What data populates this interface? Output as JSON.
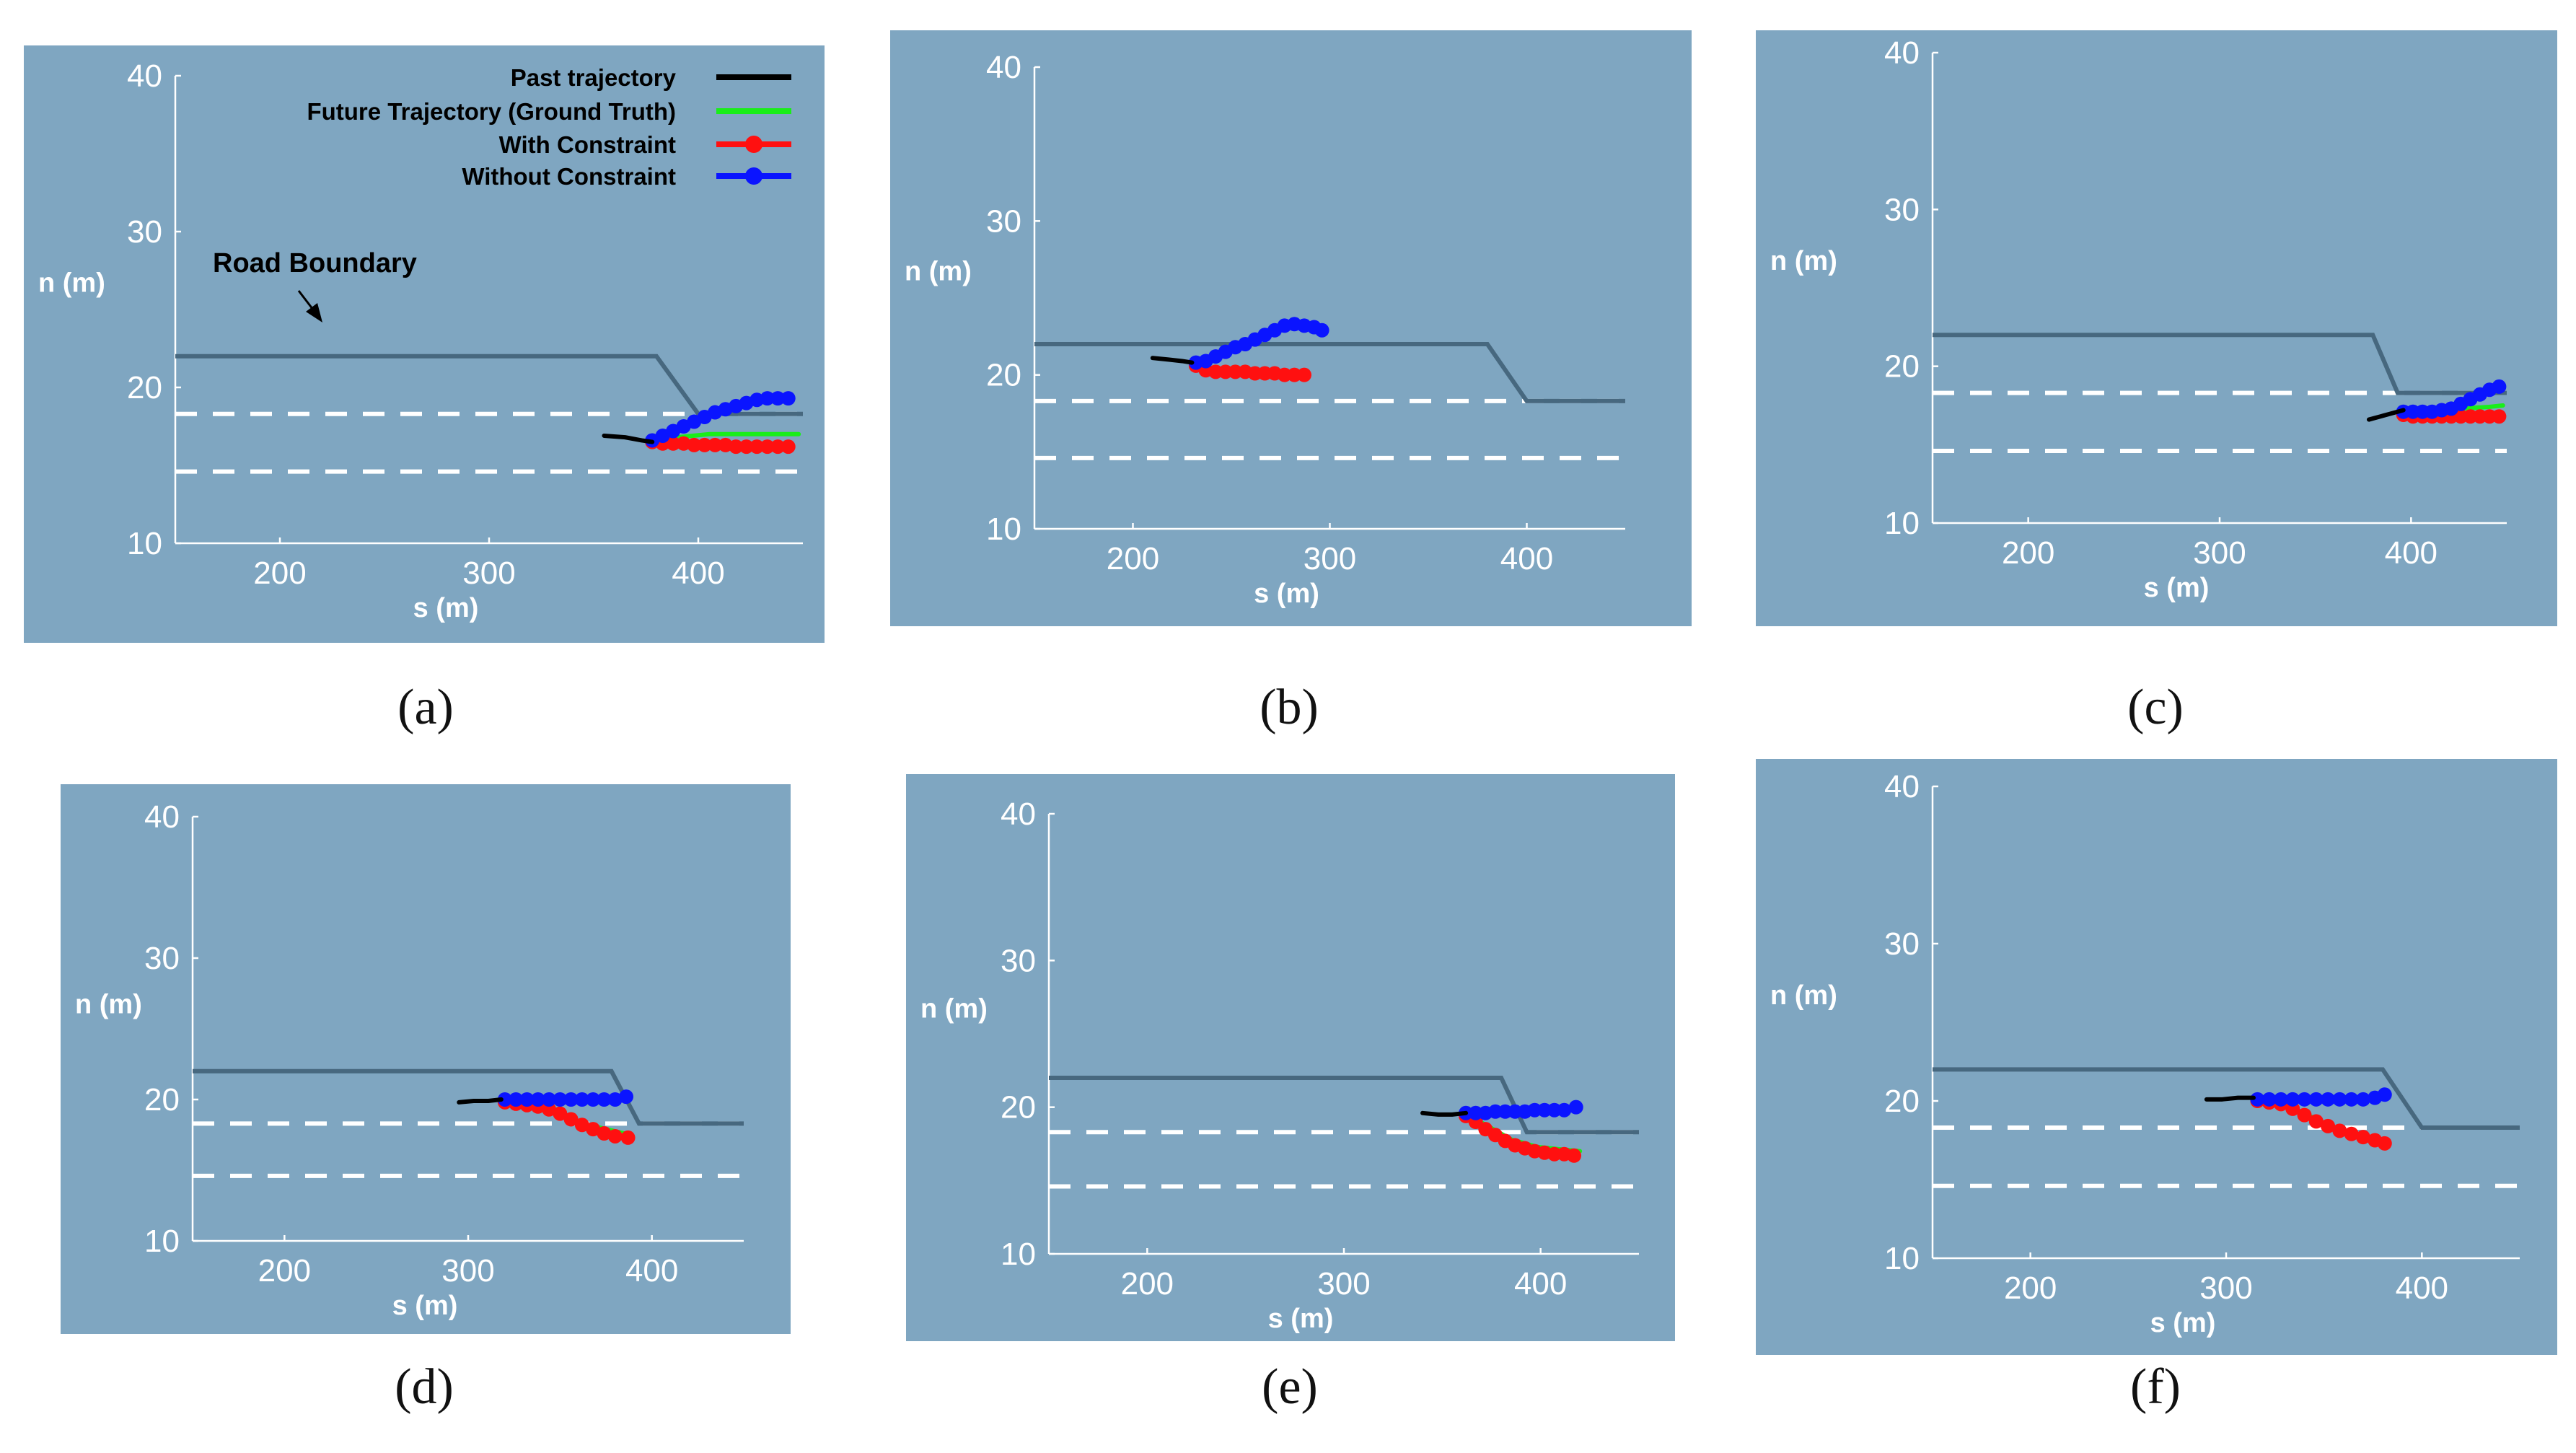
{
  "figure": {
    "captions": [
      "(a)",
      "(b)",
      "(c)",
      "(d)",
      "(e)",
      "(f)"
    ],
    "colors": {
      "background": "#7fa6c1",
      "boundary": "#47687f",
      "lane": "#ffffff",
      "past": "#000000",
      "future": "#19ee19",
      "with_constraint": "#ff1010",
      "without_constraint": "#0a14ff"
    }
  },
  "legend": {
    "items": [
      {
        "label": "Past trajectory",
        "key": "past"
      },
      {
        "label": "Future Trajectory (Ground Truth)",
        "key": "future"
      },
      {
        "label": "With Constraint",
        "key": "with"
      },
      {
        "label": "Without Constraint",
        "key": "without"
      }
    ]
  },
  "annotation": {
    "text": "Road Boundary"
  },
  "chart_data": [
    {
      "type": "line",
      "id": "a",
      "caption": "(a)",
      "xlabel": "s (m)",
      "ylabel": "n (m)",
      "xlim": [
        150,
        450
      ],
      "ylim": [
        10,
        40
      ],
      "xticks": [
        200,
        300,
        400
      ],
      "yticks": [
        10,
        20,
        30,
        40
      ],
      "road_boundary": {
        "x": [
          150,
          380,
          400,
          450
        ],
        "y": [
          22,
          22,
          18.3,
          18.3
        ]
      },
      "lane_lines": [
        18.3,
        14.6
      ],
      "series": [
        {
          "name": "Past trajectory",
          "key": "past",
          "x": [
            355,
            365,
            373,
            378
          ],
          "y": [
            16.9,
            16.8,
            16.6,
            16.5
          ]
        },
        {
          "name": "Future Trajectory (Ground Truth)",
          "key": "future",
          "x": [
            378,
            390,
            405,
            420,
            435,
            448
          ],
          "y": [
            16.5,
            16.8,
            17,
            17,
            17,
            17
          ]
        },
        {
          "name": "With Constraint",
          "key": "with",
          "x": [
            378,
            383,
            388,
            393,
            398,
            403,
            408,
            413,
            418,
            423,
            428,
            433,
            438,
            443
          ],
          "y": [
            16.5,
            16.4,
            16.4,
            16.4,
            16.3,
            16.3,
            16.3,
            16.3,
            16.2,
            16.2,
            16.2,
            16.2,
            16.2,
            16.2
          ]
        },
        {
          "name": "Without Constraint",
          "key": "without",
          "x": [
            378,
            383,
            388,
            393,
            398,
            403,
            408,
            413,
            418,
            423,
            428,
            433,
            438,
            443
          ],
          "y": [
            16.6,
            16.9,
            17.2,
            17.5,
            17.8,
            18.1,
            18.4,
            18.6,
            18.8,
            19,
            19.2,
            19.3,
            19.3,
            19.3
          ]
        }
      ]
    },
    {
      "type": "line",
      "id": "b",
      "caption": "(b)",
      "xlabel": "s (m)",
      "ylabel": "n (m)",
      "xlim": [
        150,
        450
      ],
      "ylim": [
        10,
        40
      ],
      "xticks": [
        200,
        300,
        400
      ],
      "yticks": [
        10,
        20,
        30,
        40
      ],
      "road_boundary": {
        "x": [
          150,
          380,
          400,
          450
        ],
        "y": [
          22,
          22,
          18.3,
          18.3
        ]
      },
      "lane_lines": [
        18.3,
        14.6
      ],
      "series": [
        {
          "name": "Past trajectory",
          "key": "past",
          "x": [
            210,
            218,
            225,
            230
          ],
          "y": [
            21.1,
            21.0,
            20.9,
            20.8
          ]
        },
        {
          "name": "Future Trajectory (Ground Truth)",
          "key": "future",
          "x": [
            230,
            240,
            255,
            270,
            285
          ],
          "y": [
            20.6,
            20.3,
            20.1,
            20.1,
            20.0
          ]
        },
        {
          "name": "With Constraint",
          "key": "with",
          "x": [
            232,
            237,
            242,
            247,
            252,
            257,
            262,
            267,
            272,
            277,
            282,
            287
          ],
          "y": [
            20.6,
            20.3,
            20.2,
            20.2,
            20.2,
            20.2,
            20.1,
            20.1,
            20.1,
            20.0,
            20.0,
            20.0
          ]
        },
        {
          "name": "Without Constraint",
          "key": "without",
          "x": [
            232,
            237,
            242,
            247,
            252,
            257,
            262,
            267,
            272,
            277,
            282,
            287,
            292,
            296
          ],
          "y": [
            20.8,
            20.9,
            21.2,
            21.5,
            21.8,
            22.0,
            22.3,
            22.6,
            22.9,
            23.2,
            23.3,
            23.2,
            23.1,
            22.9
          ]
        }
      ]
    },
    {
      "type": "line",
      "id": "c",
      "caption": "(c)",
      "xlabel": "s (m)",
      "ylabel": "n (m)",
      "xlim": [
        150,
        450
      ],
      "ylim": [
        10,
        40
      ],
      "xticks": [
        200,
        300,
        400
      ],
      "yticks": [
        10,
        20,
        30,
        40
      ],
      "road_boundary": {
        "x": [
          150,
          380,
          393,
          450
        ],
        "y": [
          22,
          22,
          18.3,
          18.3
        ]
      },
      "lane_lines": [
        18.3,
        14.6
      ],
      "series": [
        {
          "name": "Past trajectory",
          "key": "past",
          "x": [
            378,
            384,
            390,
            396
          ],
          "y": [
            16.6,
            16.8,
            17.0,
            17.2
          ]
        },
        {
          "name": "Future Trajectory (Ground Truth)",
          "key": "future",
          "x": [
            396,
            410,
            425,
            440,
            448
          ],
          "y": [
            17.2,
            17.2,
            17.3,
            17.4,
            17.5
          ]
        },
        {
          "name": "With Constraint",
          "key": "with",
          "x": [
            396,
            401,
            406,
            411,
            416,
            421,
            426,
            431,
            436,
            441,
            446
          ],
          "y": [
            16.9,
            16.8,
            16.8,
            16.8,
            16.8,
            16.8,
            16.8,
            16.8,
            16.8,
            16.8,
            16.8
          ]
        },
        {
          "name": "Without Constraint",
          "key": "without",
          "x": [
            396,
            401,
            406,
            411,
            416,
            421,
            426,
            431,
            436,
            441,
            446
          ],
          "y": [
            17.1,
            17.1,
            17.1,
            17.1,
            17.2,
            17.3,
            17.6,
            17.9,
            18.2,
            18.5,
            18.7
          ]
        }
      ]
    },
    {
      "type": "line",
      "id": "d",
      "caption": "(d)",
      "xlabel": "s (m)",
      "ylabel": "n (m)",
      "xlim": [
        150,
        450
      ],
      "ylim": [
        10,
        40
      ],
      "xticks": [
        200,
        300,
        400
      ],
      "yticks": [
        10,
        20,
        30,
        40
      ],
      "road_boundary": {
        "x": [
          150,
          378,
          393,
          450
        ],
        "y": [
          22,
          22,
          18.3,
          18.3
        ]
      },
      "lane_lines": [
        18.3,
        14.6
      ],
      "series": [
        {
          "name": "Past trajectory",
          "key": "past",
          "x": [
            295,
            303,
            311,
            318
          ],
          "y": [
            19.8,
            19.9,
            19.9,
            20.0
          ]
        },
        {
          "name": "Future Trajectory (Ground Truth)",
          "key": "future",
          "x": [
            318,
            330,
            345,
            358,
            372,
            385
          ],
          "y": [
            19.9,
            19.6,
            19.2,
            18.4,
            18.0,
            17.6
          ]
        },
        {
          "name": "With Constraint",
          "key": "with",
          "x": [
            320,
            326,
            332,
            338,
            344,
            350,
            356,
            362,
            368,
            374,
            380,
            387
          ],
          "y": [
            19.8,
            19.7,
            19.6,
            19.5,
            19.3,
            19.0,
            18.6,
            18.2,
            17.9,
            17.6,
            17.4,
            17.3
          ]
        },
        {
          "name": "Without Constraint",
          "key": "without",
          "x": [
            320,
            326,
            332,
            338,
            344,
            350,
            356,
            362,
            368,
            374,
            380,
            386
          ],
          "y": [
            20.0,
            20.0,
            20.0,
            20.0,
            20.0,
            20.0,
            20.0,
            20.0,
            20.0,
            20.0,
            20.0,
            20.2
          ]
        }
      ]
    },
    {
      "type": "line",
      "id": "e",
      "caption": "(e)",
      "xlabel": "s (m)",
      "ylabel": "n (m)",
      "xlim": [
        150,
        450
      ],
      "ylim": [
        10,
        40
      ],
      "xticks": [
        200,
        300,
        400
      ],
      "yticks": [
        10,
        20,
        30,
        40
      ],
      "road_boundary": {
        "x": [
          150,
          380,
          393,
          450
        ],
        "y": [
          22,
          22,
          18.3,
          18.3
        ]
      },
      "lane_lines": [
        18.3,
        14.6
      ],
      "series": [
        {
          "name": "Past trajectory",
          "key": "past",
          "x": [
            340,
            348,
            355,
            362
          ],
          "y": [
            19.6,
            19.5,
            19.5,
            19.6
          ]
        },
        {
          "name": "Future Trajectory (Ground Truth)",
          "key": "future",
          "x": [
            362,
            372,
            385,
            398,
            412,
            420
          ],
          "y": [
            19.5,
            18.8,
            17.8,
            17.3,
            17.1,
            17.0
          ]
        },
        {
          "name": "With Constraint",
          "key": "with",
          "x": [
            362,
            367,
            372,
            377,
            382,
            387,
            392,
            397,
            402,
            407,
            412,
            417
          ],
          "y": [
            19.4,
            19.0,
            18.5,
            18.1,
            17.7,
            17.4,
            17.2,
            17.0,
            16.9,
            16.8,
            16.8,
            16.7
          ]
        },
        {
          "name": "Without Constraint",
          "key": "without",
          "x": [
            362,
            367,
            372,
            377,
            382,
            387,
            392,
            397,
            402,
            407,
            412,
            418
          ],
          "y": [
            19.6,
            19.6,
            19.6,
            19.7,
            19.7,
            19.7,
            19.7,
            19.8,
            19.8,
            19.8,
            19.8,
            20.0
          ]
        }
      ]
    },
    {
      "type": "line",
      "id": "f",
      "caption": "(f)",
      "xlabel": "s (m)",
      "ylabel": "n (m)",
      "xlim": [
        150,
        450
      ],
      "ylim": [
        10,
        40
      ],
      "xticks": [
        200,
        300,
        400
      ],
      "yticks": [
        10,
        20,
        30,
        40
      ],
      "road_boundary": {
        "x": [
          150,
          380,
          400,
          450
        ],
        "y": [
          22,
          22,
          18.3,
          18.3
        ]
      },
      "lane_lines": [
        18.3,
        14.6
      ],
      "series": [
        {
          "name": "Past trajectory",
          "key": "past",
          "x": [
            290,
            298,
            306,
            314
          ],
          "y": [
            20.1,
            20.1,
            20.2,
            20.2
          ]
        },
        {
          "name": "Future Trajectory (Ground Truth)",
          "key": "future",
          "x": [
            314,
            325,
            340,
            355,
            368,
            380
          ],
          "y": [
            20.2,
            20.0,
            19.2,
            18.3,
            17.8,
            17.3
          ]
        },
        {
          "name": "With Constraint",
          "key": "with",
          "x": [
            316,
            322,
            328,
            334,
            340,
            346,
            352,
            358,
            364,
            370,
            376,
            381
          ],
          "y": [
            20.0,
            19.9,
            19.8,
            19.5,
            19.1,
            18.7,
            18.4,
            18.1,
            17.9,
            17.7,
            17.5,
            17.3
          ]
        },
        {
          "name": "Without Constraint",
          "key": "without",
          "x": [
            316,
            322,
            328,
            334,
            340,
            346,
            352,
            358,
            364,
            370,
            376,
            381
          ],
          "y": [
            20.1,
            20.1,
            20.1,
            20.1,
            20.1,
            20.1,
            20.1,
            20.1,
            20.1,
            20.1,
            20.2,
            20.4
          ]
        }
      ]
    }
  ]
}
